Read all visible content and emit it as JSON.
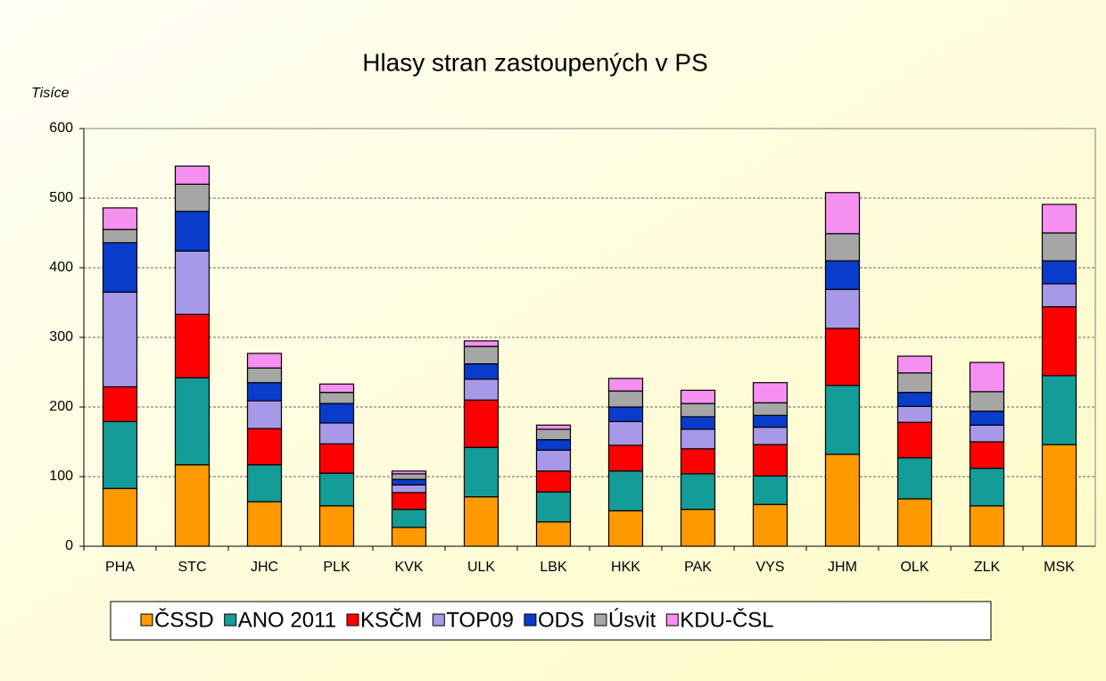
{
  "chart_data": {
    "type": "stacked_bar",
    "title": "Hlasy stran zastoupených v PS",
    "y_axis_label": "Tisíce",
    "categories": [
      "PHA",
      "STC",
      "JHC",
      "PLK",
      "KVK",
      "ULK",
      "LBK",
      "HKK",
      "PAK",
      "VYS",
      "JHM",
      "OLK",
      "ZLK",
      "MSK"
    ],
    "series": [
      {
        "name": "ČSSD",
        "color": "#ff9900",
        "values": [
          83,
          117,
          64,
          58,
          27,
          71,
          35,
          51,
          53,
          60,
          132,
          68,
          58,
          146
        ]
      },
      {
        "name": "ANO 2011",
        "color": "#139c98",
        "values": [
          96,
          125,
          53,
          47,
          26,
          71,
          43,
          57,
          51,
          41,
          99,
          59,
          54,
          99
        ]
      },
      {
        "name": "KSČM",
        "color": "#ff0000",
        "values": [
          50,
          91,
          52,
          42,
          24,
          68,
          30,
          37,
          36,
          45,
          82,
          51,
          38,
          99
        ]
      },
      {
        "name": "TOP09",
        "color": "#a899e8",
        "values": [
          136,
          91,
          40,
          30,
          11,
          30,
          30,
          34,
          28,
          25,
          56,
          23,
          24,
          33
        ]
      },
      {
        "name": "ODS",
        "color": "#0a3ccc",
        "values": [
          71,
          57,
          26,
          28,
          8,
          22,
          15,
          21,
          18,
          17,
          41,
          20,
          20,
          33
        ]
      },
      {
        "name": "Úsvit",
        "color": "#a6a6a6",
        "values": [
          19,
          39,
          21,
          16,
          8,
          25,
          15,
          23,
          19,
          18,
          39,
          28,
          28,
          40
        ]
      },
      {
        "name": "KDU-ČSL",
        "color": "#f590f0",
        "values": [
          31,
          26,
          21,
          12,
          4,
          8,
          6,
          18,
          19,
          29,
          59,
          24,
          42,
          41
        ]
      }
    ],
    "ylim": [
      0,
      600
    ],
    "yticks": [
      0,
      100,
      200,
      300,
      400,
      500,
      600
    ],
    "grid": true
  }
}
